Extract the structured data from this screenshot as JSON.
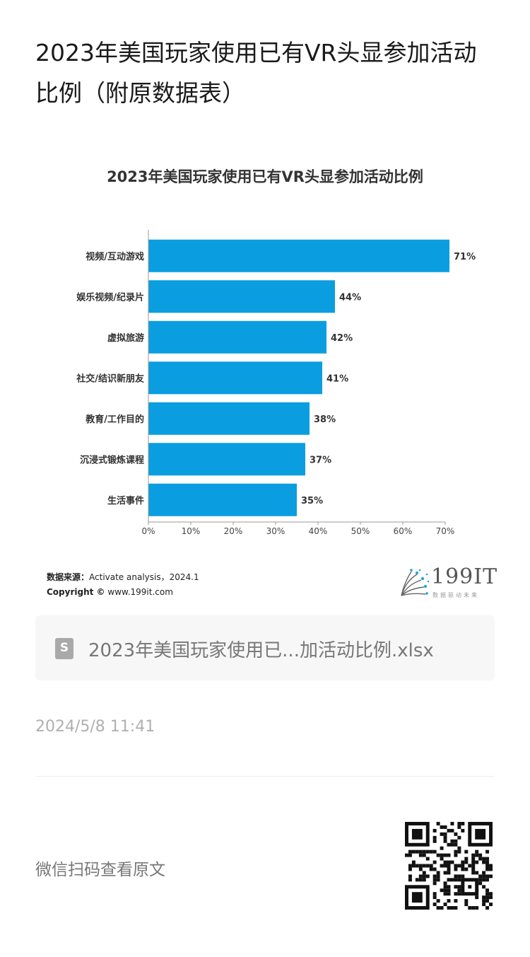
{
  "article": {
    "title": "2023年美国玩家使用已有VR头显参加活动比例（附原数据表）"
  },
  "chart_data": {
    "type": "bar",
    "orientation": "horizontal",
    "title": "2023年美国玩家使用已有VR头显参加活动比例",
    "categories": [
      "视频/互动游戏",
      "娱乐视频/纪录片",
      "虚拟旅游",
      "社交/结识新朋友",
      "教育/工作目的",
      "沉浸式锻炼课程",
      "生活事件"
    ],
    "values": [
      71,
      44,
      42,
      41,
      38,
      37,
      35
    ],
    "data_labels": [
      "71%",
      "44%",
      "42%",
      "41%",
      "38%",
      "37%",
      "35%"
    ],
    "xticks": [
      0,
      10,
      20,
      30,
      40,
      50,
      60,
      70
    ],
    "xtick_labels": [
      "0%",
      "10%",
      "20%",
      "30%",
      "40%",
      "50%",
      "60%",
      "70%"
    ],
    "xlim": [
      0,
      70
    ],
    "grid": false,
    "bar_color": "#0a9ee0"
  },
  "source": {
    "label": "数据来源：",
    "text": "Activate analysis，2024.1",
    "copyright_label": "Copyright ©",
    "copyright_text": "www.199it.com"
  },
  "logo": {
    "text": "199IT",
    "subtitle": "数据驱动未来",
    "icon": "dandelion-logo-icon"
  },
  "attachment": {
    "icon": "spreadsheet-file-icon",
    "icon_letter": "S",
    "filename": "2023年美国玩家使用已...加活动比例.xlsx"
  },
  "meta": {
    "timestamp": "2024/5/8 11:41"
  },
  "footer": {
    "text": "微信扫码查看原文",
    "qr_icon": "qr-code-icon"
  }
}
